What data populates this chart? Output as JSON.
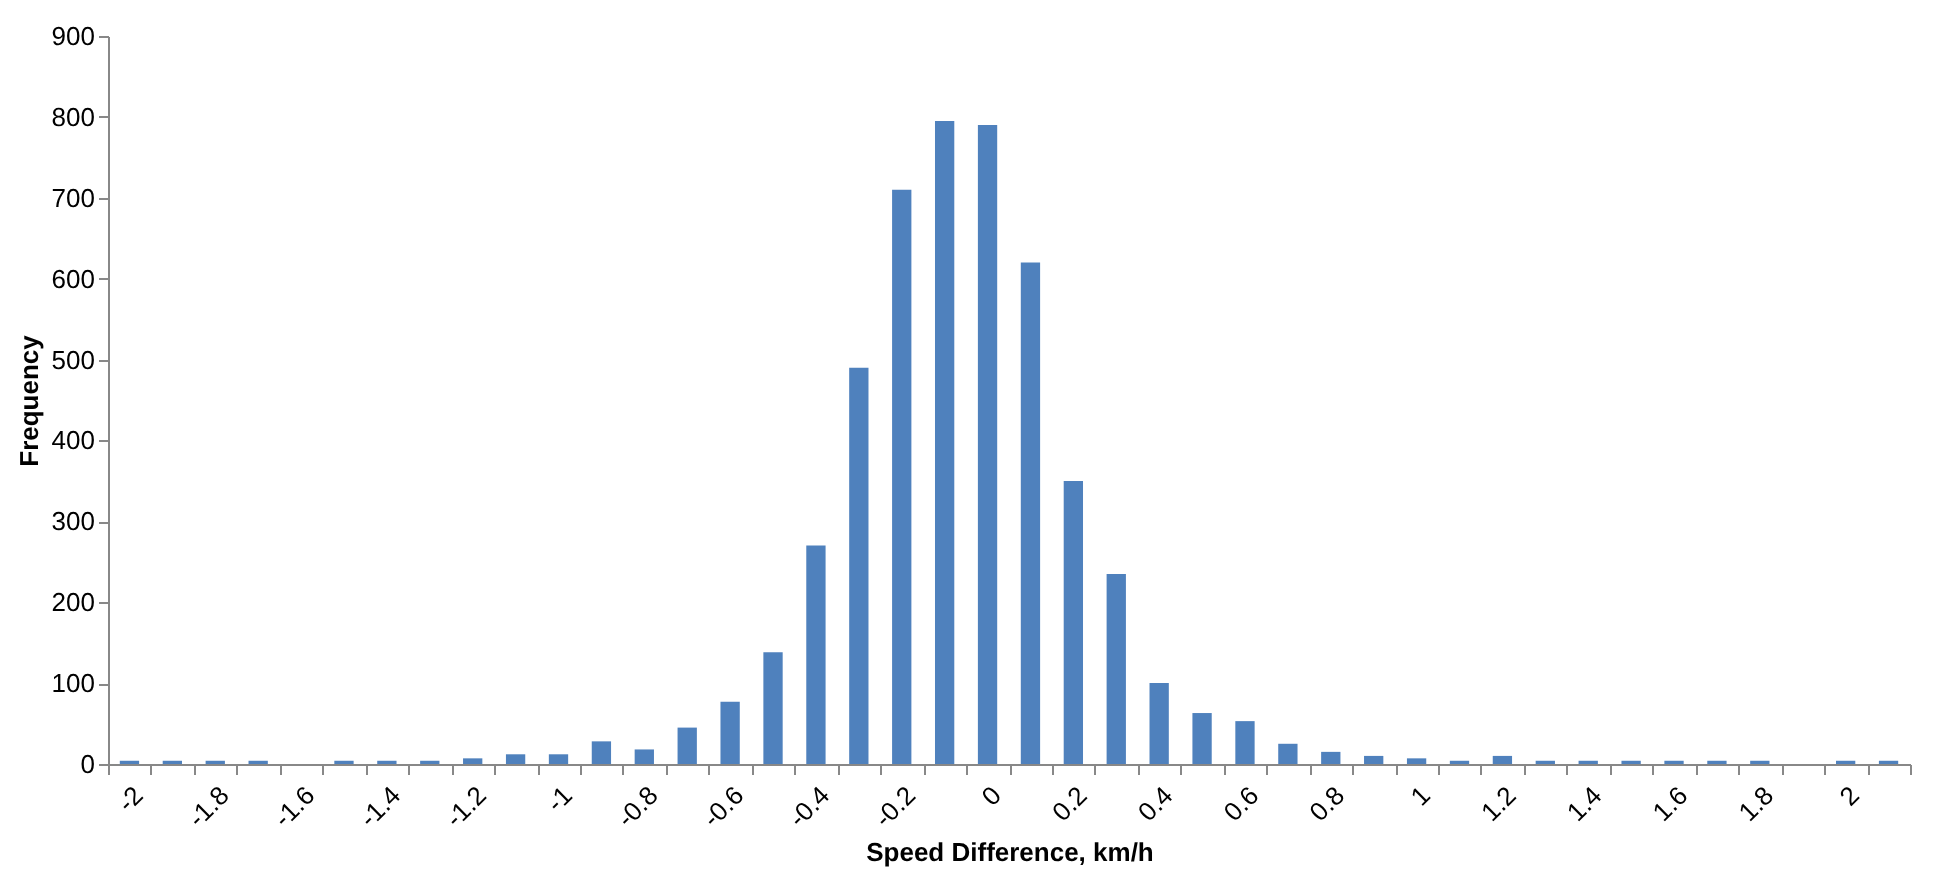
{
  "chart_data": {
    "type": "bar",
    "xlabel": "Speed Difference, km/h",
    "ylabel": "Frequency",
    "categories": [
      "-2",
      null,
      "-1.8",
      null,
      "-1.6",
      null,
      "-1.4",
      null,
      "-1.2",
      null,
      "-1",
      null,
      "-0.8",
      null,
      "-0.6",
      null,
      "-0.4",
      null,
      "-0.2",
      null,
      "0",
      null,
      "0.2",
      null,
      "0.4",
      null,
      "0.6",
      null,
      "0.8",
      null,
      "1",
      null,
      "1.2",
      null,
      "1.4",
      null,
      "1.6",
      null,
      "1.8",
      null,
      "2",
      null
    ],
    "values": [
      4,
      4,
      4,
      4,
      0,
      4,
      4,
      4,
      7,
      12,
      12,
      28,
      18,
      45,
      77,
      138,
      270,
      490,
      710,
      795,
      790,
      620,
      350,
      235,
      100,
      63,
      53,
      25,
      15,
      10,
      7,
      4,
      10,
      4,
      4,
      4,
      4,
      4,
      4,
      0,
      4,
      4
    ],
    "color": "#4f81bd",
    "ylim": [
      0,
      900
    ],
    "yticks": [
      0,
      100,
      200,
      300,
      400,
      500,
      600,
      700,
      800,
      900
    ],
    "grid": false
  }
}
